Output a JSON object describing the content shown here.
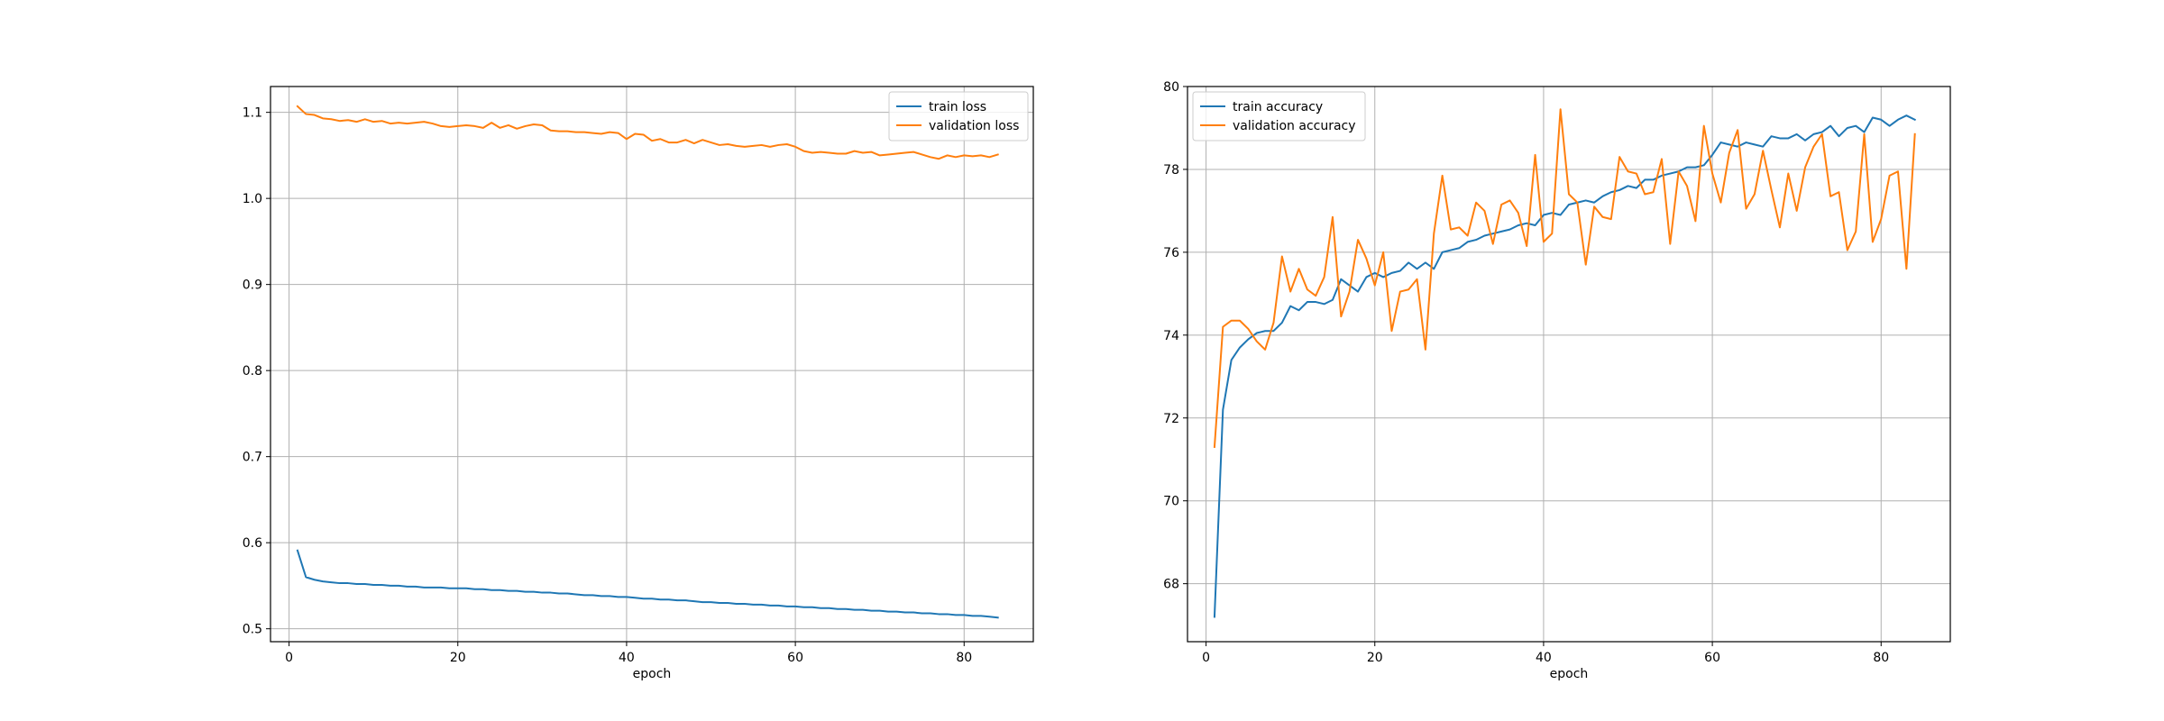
{
  "colors": {
    "train": "#1f77b4",
    "validation": "#ff7f0e",
    "grid": "#b0b0b0",
    "frame": "#000000"
  },
  "chart_data": [
    {
      "type": "line",
      "title": "",
      "xlabel": "epoch",
      "ylabel": "",
      "xlim": [
        -2.2,
        88.2
      ],
      "ylim": [
        0.485,
        1.13
      ],
      "xticks": [
        0,
        20,
        40,
        60,
        80
      ],
      "xtick_labels": [
        "0",
        "20",
        "40",
        "60",
        "80"
      ],
      "yticks": [
        0.5,
        0.6,
        0.7,
        0.8,
        0.9,
        1.0,
        1.1
      ],
      "ytick_labels": [
        "0.5",
        "0.6",
        "0.7",
        "0.8",
        "0.9",
        "1.0",
        "1.1"
      ],
      "grid": true,
      "legend_position": "top-right",
      "x_start": 1,
      "series": [
        {
          "name": "train loss",
          "color": "#1f77b4",
          "values": [
            0.591,
            0.56,
            0.557,
            0.555,
            0.554,
            0.553,
            0.553,
            0.552,
            0.552,
            0.551,
            0.551,
            0.55,
            0.55,
            0.549,
            0.549,
            0.548,
            0.548,
            0.548,
            0.547,
            0.547,
            0.547,
            0.546,
            0.546,
            0.545,
            0.545,
            0.544,
            0.544,
            0.543,
            0.543,
            0.542,
            0.542,
            0.541,
            0.541,
            0.54,
            0.539,
            0.539,
            0.538,
            0.538,
            0.537,
            0.537,
            0.536,
            0.535,
            0.535,
            0.534,
            0.534,
            0.533,
            0.533,
            0.532,
            0.531,
            0.531,
            0.53,
            0.53,
            0.529,
            0.529,
            0.528,
            0.528,
            0.527,
            0.527,
            0.526,
            0.526,
            0.525,
            0.525,
            0.524,
            0.524,
            0.523,
            0.523,
            0.522,
            0.522,
            0.521,
            0.521,
            0.52,
            0.52,
            0.519,
            0.519,
            0.518,
            0.518,
            0.517,
            0.517,
            0.516,
            0.516,
            0.515,
            0.515,
            0.514,
            0.513
          ]
        },
        {
          "name": "validation loss",
          "color": "#ff7f0e",
          "values": [
            1.107,
            1.098,
            1.097,
            1.093,
            1.092,
            1.09,
            1.091,
            1.089,
            1.092,
            1.089,
            1.09,
            1.087,
            1.088,
            1.087,
            1.088,
            1.089,
            1.087,
            1.084,
            1.083,
            1.084,
            1.085,
            1.084,
            1.082,
            1.088,
            1.082,
            1.085,
            1.081,
            1.084,
            1.086,
            1.085,
            1.079,
            1.078,
            1.078,
            1.077,
            1.077,
            1.076,
            1.075,
            1.077,
            1.076,
            1.069,
            1.075,
            1.074,
            1.067,
            1.069,
            1.065,
            1.065,
            1.068,
            1.064,
            1.068,
            1.065,
            1.062,
            1.063,
            1.061,
            1.06,
            1.061,
            1.062,
            1.06,
            1.062,
            1.063,
            1.06,
            1.055,
            1.053,
            1.054,
            1.053,
            1.052,
            1.052,
            1.055,
            1.053,
            1.054,
            1.05,
            1.051,
            1.052,
            1.053,
            1.054,
            1.051,
            1.048,
            1.046,
            1.05,
            1.048,
            1.05,
            1.049,
            1.05,
            1.048,
            1.051
          ]
        }
      ]
    },
    {
      "type": "line",
      "title": "",
      "xlabel": "epoch",
      "ylabel": "",
      "xlim": [
        -2.2,
        88.2
      ],
      "ylim": [
        66.6,
        80.0
      ],
      "xticks": [
        0,
        20,
        40,
        60,
        80
      ],
      "xtick_labels": [
        "0",
        "20",
        "40",
        "60",
        "80"
      ],
      "yticks": [
        68,
        70,
        72,
        74,
        76,
        78,
        80
      ],
      "ytick_labels": [
        "68",
        "70",
        "72",
        "74",
        "76",
        "78",
        "80"
      ],
      "grid": true,
      "legend_position": "top-left",
      "x_start": 1,
      "series": [
        {
          "name": "train accuracy",
          "color": "#1f77b4",
          "values": [
            67.2,
            72.2,
            73.4,
            73.7,
            73.9,
            74.05,
            74.1,
            74.1,
            74.3,
            74.7,
            74.6,
            74.8,
            74.8,
            74.75,
            74.85,
            75.35,
            75.2,
            75.05,
            75.4,
            75.5,
            75.4,
            75.5,
            75.55,
            75.75,
            75.6,
            75.75,
            75.6,
            76.0,
            76.05,
            76.1,
            76.25,
            76.3,
            76.4,
            76.45,
            76.5,
            76.55,
            76.65,
            76.7,
            76.65,
            76.9,
            76.95,
            76.9,
            77.15,
            77.2,
            77.25,
            77.2,
            77.35,
            77.45,
            77.5,
            77.6,
            77.55,
            77.75,
            77.75,
            77.85,
            77.9,
            77.95,
            78.05,
            78.05,
            78.1,
            78.35,
            78.65,
            78.6,
            78.55,
            78.65,
            78.6,
            78.55,
            78.8,
            78.75,
            78.75,
            78.85,
            78.7,
            78.85,
            78.9,
            79.05,
            78.8,
            79.0,
            79.05,
            78.9,
            79.25,
            79.2,
            79.05,
            79.2,
            79.3,
            79.2
          ]
        },
        {
          "name": "validation accuracy",
          "color": "#ff7f0e",
          "values": [
            71.3,
            74.2,
            74.35,
            74.35,
            74.15,
            73.85,
            73.65,
            74.3,
            75.9,
            75.05,
            75.6,
            75.1,
            74.95,
            75.4,
            76.85,
            74.45,
            75.05,
            76.3,
            75.85,
            75.2,
            76.0,
            74.1,
            75.05,
            75.1,
            75.35,
            73.65,
            76.45,
            77.85,
            76.55,
            76.6,
            76.4,
            77.2,
            77.0,
            76.2,
            77.15,
            77.25,
            76.95,
            76.15,
            78.35,
            76.25,
            76.45,
            79.45,
            77.4,
            77.2,
            75.7,
            77.1,
            76.85,
            76.8,
            78.3,
            77.95,
            77.9,
            77.4,
            77.45,
            78.25,
            76.2,
            77.95,
            77.6,
            76.75,
            79.05,
            77.9,
            77.2,
            78.4,
            78.95,
            77.05,
            77.4,
            78.45,
            77.5,
            76.6,
            77.9,
            77.0,
            78.05,
            78.55,
            78.85,
            77.35,
            77.45,
            76.05,
            76.5,
            78.85,
            76.25,
            76.8,
            77.85,
            77.95,
            75.6,
            78.85
          ]
        }
      ]
    }
  ]
}
